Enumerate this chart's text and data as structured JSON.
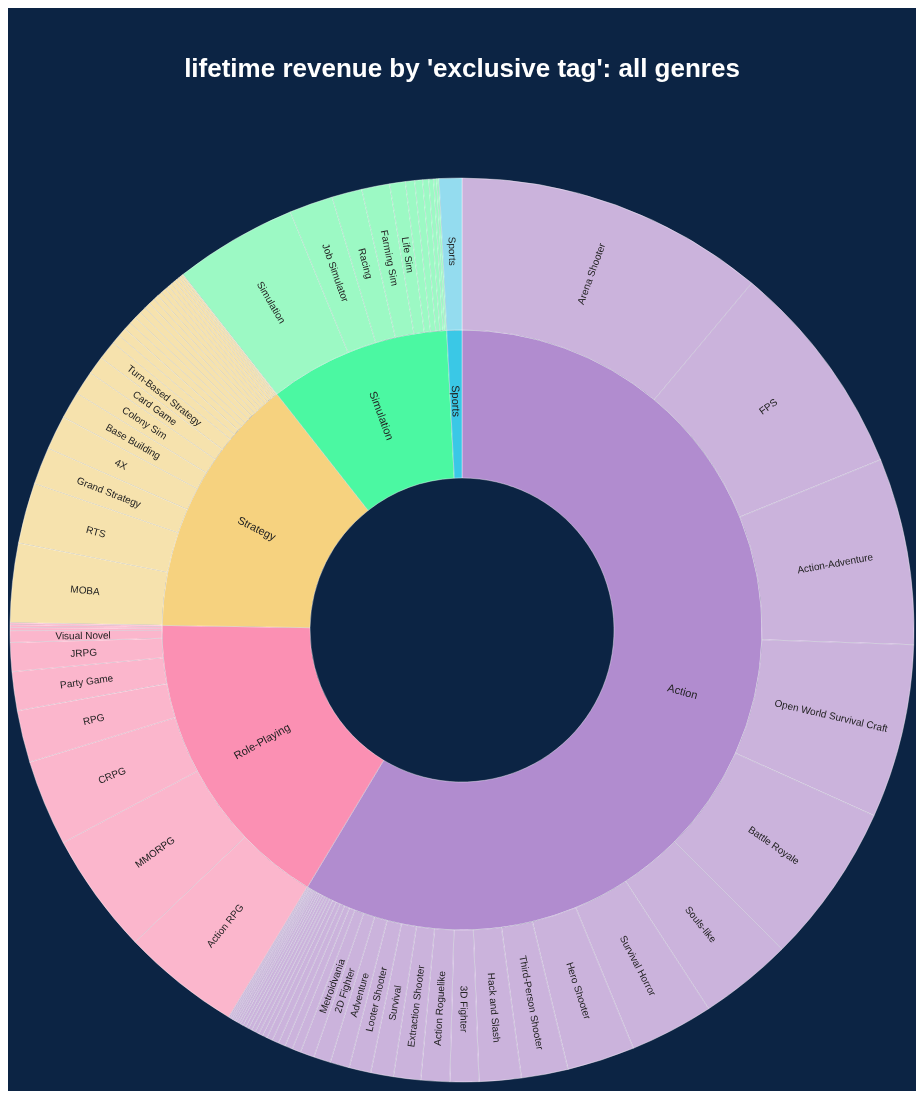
{
  "chart_data": [
    {
      "type": "donut",
      "title": "lifetime revenue by 'exclusive tag': all genres",
      "categories": [
        "Action",
        "Role-Playing",
        "Strategy",
        "Simulation",
        "Sports"
      ],
      "values": [
        58.63,
        16.63,
        14.17,
        9.78,
        0.81
      ],
      "colors": [
        "#b18ccf",
        "#fb90b3",
        "#f6d27f",
        "#4bf8a2",
        "#3ac8e6"
      ]
    },
    {
      "type": "donut",
      "categories": [
        "Arena Shooter",
        "FPS",
        "Action-Adventure",
        "Open World Survival Craft",
        "Battle Royale",
        "Souls-like",
        "Survival Horror",
        "Hero Shooter",
        "Third-Person Shooter",
        "Hack and Slash",
        "3D Fighter",
        "Action Roguelike",
        "Extraction Shooter",
        "Survival",
        "Looter Shooter",
        "Adventure",
        "2D Fighter",
        "Metroidvania",
        null,
        null,
        null,
        null,
        null,
        null,
        null,
        null,
        null,
        null,
        null,
        null,
        null,
        null,
        null,
        null,
        null,
        null,
        null,
        null,
        "Action RPG",
        "MMORPG",
        "CRPG",
        "RPG",
        "Party Game",
        "JRPG",
        "Visual Novel",
        null,
        null,
        null,
        "MOBA",
        "RTS",
        "Grand Strategy",
        "4X",
        "Base Building",
        "Colony Sim",
        "Card Game",
        "Turn-Based Strategy",
        null,
        null,
        null,
        null,
        null,
        null,
        null,
        null,
        null,
        null,
        null,
        null,
        null,
        null,
        null,
        null,
        null,
        null,
        null,
        "Simulation",
        "Job Simulator",
        "Racing",
        "Farming Sim",
        "Life Sim",
        null,
        null,
        null,
        null,
        null,
        null,
        "Sports"
      ],
      "values": [
        11.08,
        7.78,
        6.67,
        6.22,
        5.75,
        3.33,
        3.0,
        2.42,
        1.67,
        1.5,
        1.03,
        1.03,
        0.97,
        0.81,
        0.78,
        0.69,
        0.61,
        0.5,
        0.31,
        0.28,
        0.25,
        0.24,
        0.21,
        0.17,
        0.15,
        0.14,
        0.14,
        0.13,
        0.11,
        0.11,
        0.1,
        0.08,
        0.08,
        0.07,
        0.07,
        0.06,
        0.06,
        0.06,
        4.24,
        4.33,
        3.08,
        1.86,
        1.39,
        1.03,
        0.42,
        0.11,
        0.1,
        0.07,
        2.83,
        2.17,
        1.33,
        1.22,
        0.97,
        0.86,
        0.65,
        0.68,
        0.33,
        0.31,
        0.28,
        0.26,
        0.25,
        0.24,
        0.22,
        0.21,
        0.19,
        0.18,
        0.17,
        0.15,
        0.14,
        0.13,
        0.11,
        0.1,
        0.08,
        0.07,
        0.03,
        4.39,
        1.56,
        1.08,
        1.0,
        0.56,
        0.33,
        0.28,
        0.22,
        0.17,
        0.11,
        0.08,
        0.81
      ],
      "colors": [
        "#cbb3dc",
        "#cbb3dc",
        "#cbb3dc",
        "#cbb3dc",
        "#cbb3dc",
        "#cbb3dc",
        "#cbb3dc",
        "#cbb3dc",
        "#cbb3dc",
        "#cbb3dc",
        "#cbb3dc",
        "#cbb3dc",
        "#cbb3dc",
        "#cbb3dc",
        "#cbb3dc",
        "#cbb3dc",
        "#cbb3dc",
        "#cbb3dc",
        "#cbb3dc",
        "#cbb3dc",
        "#cbb3dc",
        "#cbb3dc",
        "#cbb3dc",
        "#cbb3dc",
        "#cbb3dc",
        "#cbb3dc",
        "#cbb3dc",
        "#cbb3dc",
        "#cbb3dc",
        "#cbb3dc",
        "#cbb3dc",
        "#cbb3dc",
        "#cbb3dc",
        "#cbb3dc",
        "#cbb3dc",
        "#cbb3dc",
        "#cbb3dc",
        "#cbb3dc",
        "#fbb6cc",
        "#fbb6cc",
        "#fbb6cc",
        "#fbb6cc",
        "#fbb6cc",
        "#fbb6cc",
        "#fbb6cc",
        "#fbb6cc",
        "#fbb6cc",
        "#fbb6cc",
        "#f6e2ad",
        "#f6e2ad",
        "#f6e2ad",
        "#f6e2ad",
        "#f6e2ad",
        "#f6e2ad",
        "#f6e2ad",
        "#f6e2ad",
        "#f6e2ad",
        "#f6e2ad",
        "#f6e2ad",
        "#f6e2ad",
        "#f6e2ad",
        "#f6e2ad",
        "#f6e2ad",
        "#f6e2ad",
        "#f6e2ad",
        "#f6e2ad",
        "#f6e2ad",
        "#f6e2ad",
        "#f6e2ad",
        "#f6e2ad",
        "#f6e2ad",
        "#f6e2ad",
        "#f6e2ad",
        "#f6e2ad",
        "#f6e2ad",
        "#9cf9c4",
        "#9cf9c4",
        "#9cf9c4",
        "#9cf9c4",
        "#9cf9c4",
        "#9cf9c4",
        "#9cf9c4",
        "#9cf9c4",
        "#9cf9c4",
        "#9cf9c4",
        "#9cf9c4",
        "#94dcef"
      ]
    }
  ]
}
